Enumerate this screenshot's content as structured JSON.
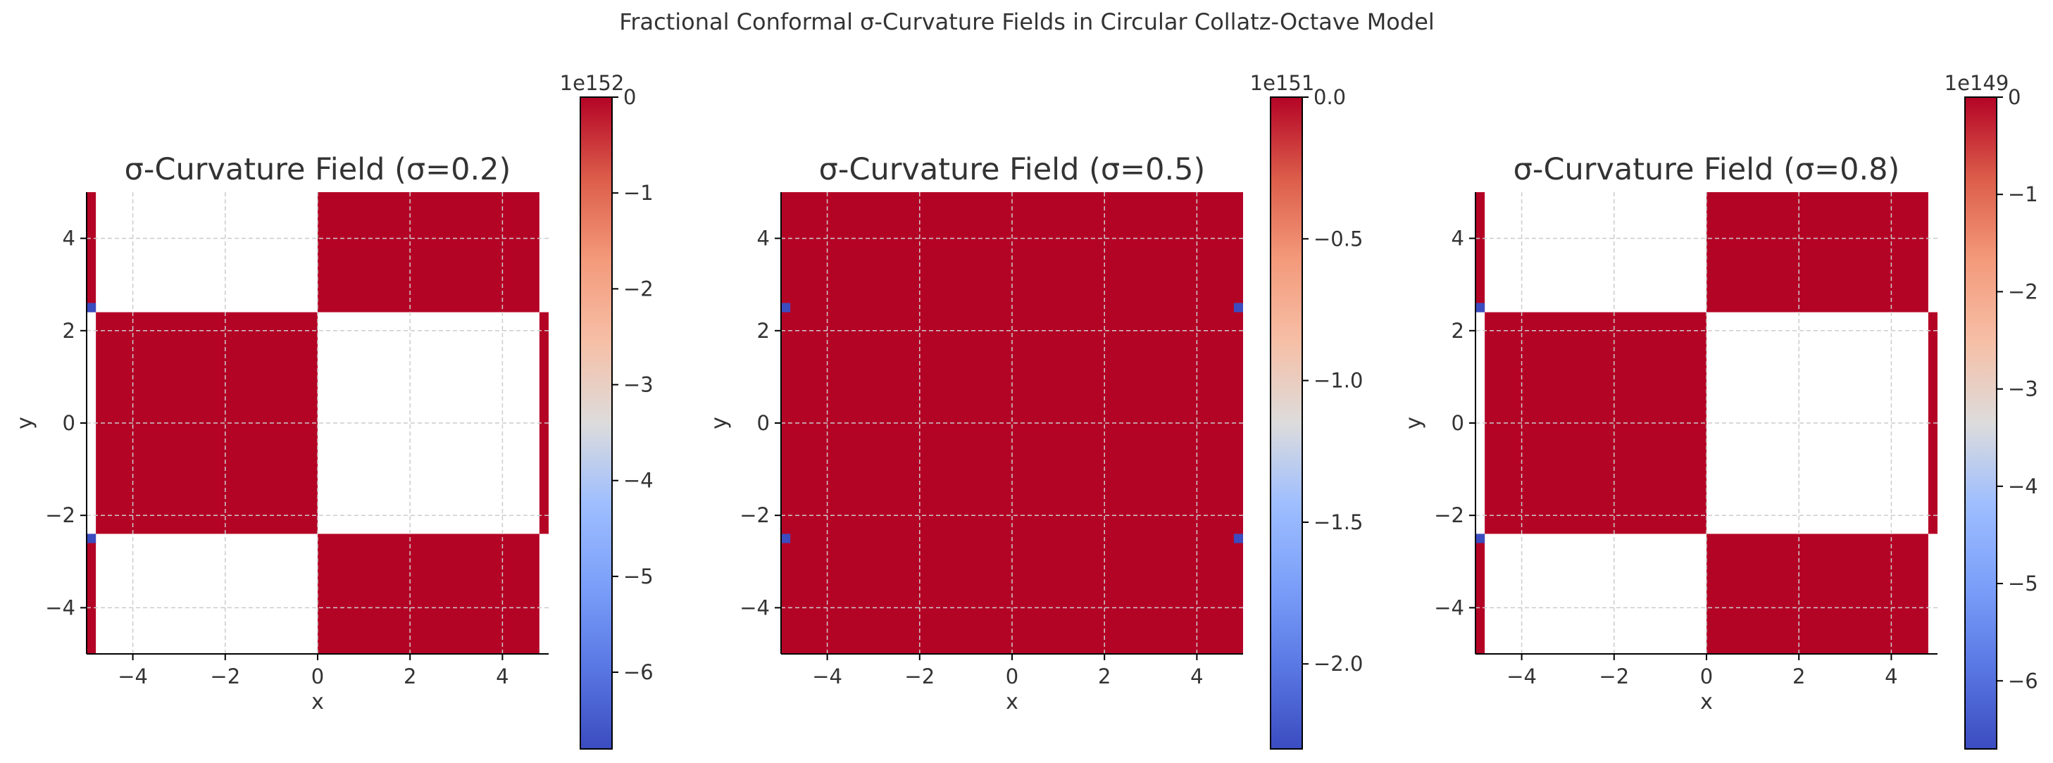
{
  "figure": {
    "suptitle": "Fractional Conformal σ-Curvature Fields in Circular Collatz-Octave Model"
  },
  "colors": {
    "red": "#b40426",
    "blue": "#3b4cc0",
    "grid": "#cccccc",
    "text": "#333333",
    "colormap": "coolwarm"
  },
  "chart_data": [
    {
      "type": "heatmap",
      "title": "σ-Curvature Field (σ=0.2)",
      "xlabel": "x",
      "ylabel": "y",
      "xlim": [
        -5,
        5
      ],
      "ylim": [
        -5,
        5
      ],
      "xticks": [
        "−4",
        "−2",
        "0",
        "2",
        "4"
      ],
      "xtick_values": [
        -4,
        -2,
        0,
        2,
        4
      ],
      "yticks": [
        "4",
        "2",
        "0",
        "−2",
        "−4"
      ],
      "ytick_values": [
        4,
        2,
        0,
        -2,
        -4
      ],
      "grid": true,
      "colorbar": {
        "offset_label": "1e152",
        "ticks": [
          "0",
          "−1",
          "−2",
          "−3",
          "−4",
          "−5",
          "−6"
        ],
        "tick_values": [
          0,
          -1,
          -2,
          -3,
          -4,
          -5,
          -6
        ],
        "range": [
          -6.8,
          0
        ]
      },
      "regions": [
        {
          "x": [
            -5.0,
            -4.8
          ],
          "y": [
            2.4,
            5.0
          ],
          "color": "red"
        },
        {
          "x": [
            -5.0,
            -4.8
          ],
          "y": [
            -5.0,
            -2.4
          ],
          "color": "red"
        },
        {
          "x": [
            -4.8,
            0.0
          ],
          "y": [
            -2.4,
            2.4
          ],
          "color": "red"
        },
        {
          "x": [
            0.0,
            4.8
          ],
          "y": [
            2.4,
            5.0
          ],
          "color": "red"
        },
        {
          "x": [
            0.0,
            4.8
          ],
          "y": [
            -5.0,
            -2.4
          ],
          "color": "red"
        },
        {
          "x": [
            4.8,
            5.0
          ],
          "y": [
            -2.4,
            2.4
          ],
          "color": "red"
        },
        {
          "x": [
            -5.0,
            -4.8
          ],
          "y": [
            2.4,
            2.6
          ],
          "color": "blue"
        },
        {
          "x": [
            -5.0,
            -4.8
          ],
          "y": [
            -2.6,
            -2.4
          ],
          "color": "blue"
        }
      ]
    },
    {
      "type": "heatmap",
      "title": "σ-Curvature Field (σ=0.5)",
      "xlabel": "x",
      "ylabel": "y",
      "xlim": [
        -5,
        5
      ],
      "ylim": [
        -5,
        5
      ],
      "xticks": [
        "−4",
        "−2",
        "0",
        "2",
        "4"
      ],
      "xtick_values": [
        -4,
        -2,
        0,
        2,
        4
      ],
      "yticks": [
        "4",
        "2",
        "0",
        "−2",
        "−4"
      ],
      "ytick_values": [
        4,
        2,
        0,
        -2,
        -4
      ],
      "grid": true,
      "colorbar": {
        "offset_label": "1e151",
        "ticks": [
          "0.0",
          "−0.5",
          "−1.0",
          "−1.5",
          "−2.0"
        ],
        "tick_values": [
          0,
          -0.5,
          -1.0,
          -1.5,
          -2.0
        ],
        "range": [
          -2.3,
          0
        ]
      },
      "regions": [
        {
          "x": [
            -5.0,
            5.0
          ],
          "y": [
            -5.0,
            5.0
          ],
          "color": "red"
        },
        {
          "x": [
            -5.0,
            -4.8
          ],
          "y": [
            2.4,
            2.6
          ],
          "color": "blue"
        },
        {
          "x": [
            -5.0,
            -4.8
          ],
          "y": [
            -2.6,
            -2.4
          ],
          "color": "blue"
        },
        {
          "x": [
            4.8,
            5.0
          ],
          "y": [
            2.4,
            2.6
          ],
          "color": "blue"
        },
        {
          "x": [
            4.8,
            5.0
          ],
          "y": [
            -2.6,
            -2.4
          ],
          "color": "blue"
        }
      ]
    },
    {
      "type": "heatmap",
      "title": "σ-Curvature Field (σ=0.8)",
      "xlabel": "x",
      "ylabel": "y",
      "xlim": [
        -5,
        5
      ],
      "ylim": [
        -5,
        5
      ],
      "xticks": [
        "−4",
        "−2",
        "0",
        "2",
        "4"
      ],
      "xtick_values": [
        -4,
        -2,
        0,
        2,
        4
      ],
      "yticks": [
        "4",
        "2",
        "0",
        "−2",
        "−4"
      ],
      "ytick_values": [
        4,
        2,
        0,
        -2,
        -4
      ],
      "grid": true,
      "colorbar": {
        "offset_label": "1e149",
        "ticks": [
          "0",
          "−1",
          "−2",
          "−3",
          "−4",
          "−5",
          "−6"
        ],
        "tick_values": [
          0,
          -1,
          -2,
          -3,
          -4,
          -5,
          -6
        ],
        "range": [
          -6.7,
          0
        ]
      },
      "regions": [
        {
          "x": [
            -5.0,
            -4.8
          ],
          "y": [
            2.4,
            5.0
          ],
          "color": "red"
        },
        {
          "x": [
            -5.0,
            -4.8
          ],
          "y": [
            -5.0,
            -2.4
          ],
          "color": "red"
        },
        {
          "x": [
            -4.8,
            0.0
          ],
          "y": [
            -2.4,
            2.4
          ],
          "color": "red"
        },
        {
          "x": [
            0.0,
            4.8
          ],
          "y": [
            2.4,
            5.0
          ],
          "color": "red"
        },
        {
          "x": [
            0.0,
            4.8
          ],
          "y": [
            -5.0,
            -2.4
          ],
          "color": "red"
        },
        {
          "x": [
            4.8,
            5.0
          ],
          "y": [
            -2.4,
            2.4
          ],
          "color": "red"
        },
        {
          "x": [
            -5.0,
            -4.8
          ],
          "y": [
            2.4,
            2.6
          ],
          "color": "blue"
        },
        {
          "x": [
            -5.0,
            -4.8
          ],
          "y": [
            -2.6,
            -2.4
          ],
          "color": "blue"
        }
      ]
    }
  ]
}
